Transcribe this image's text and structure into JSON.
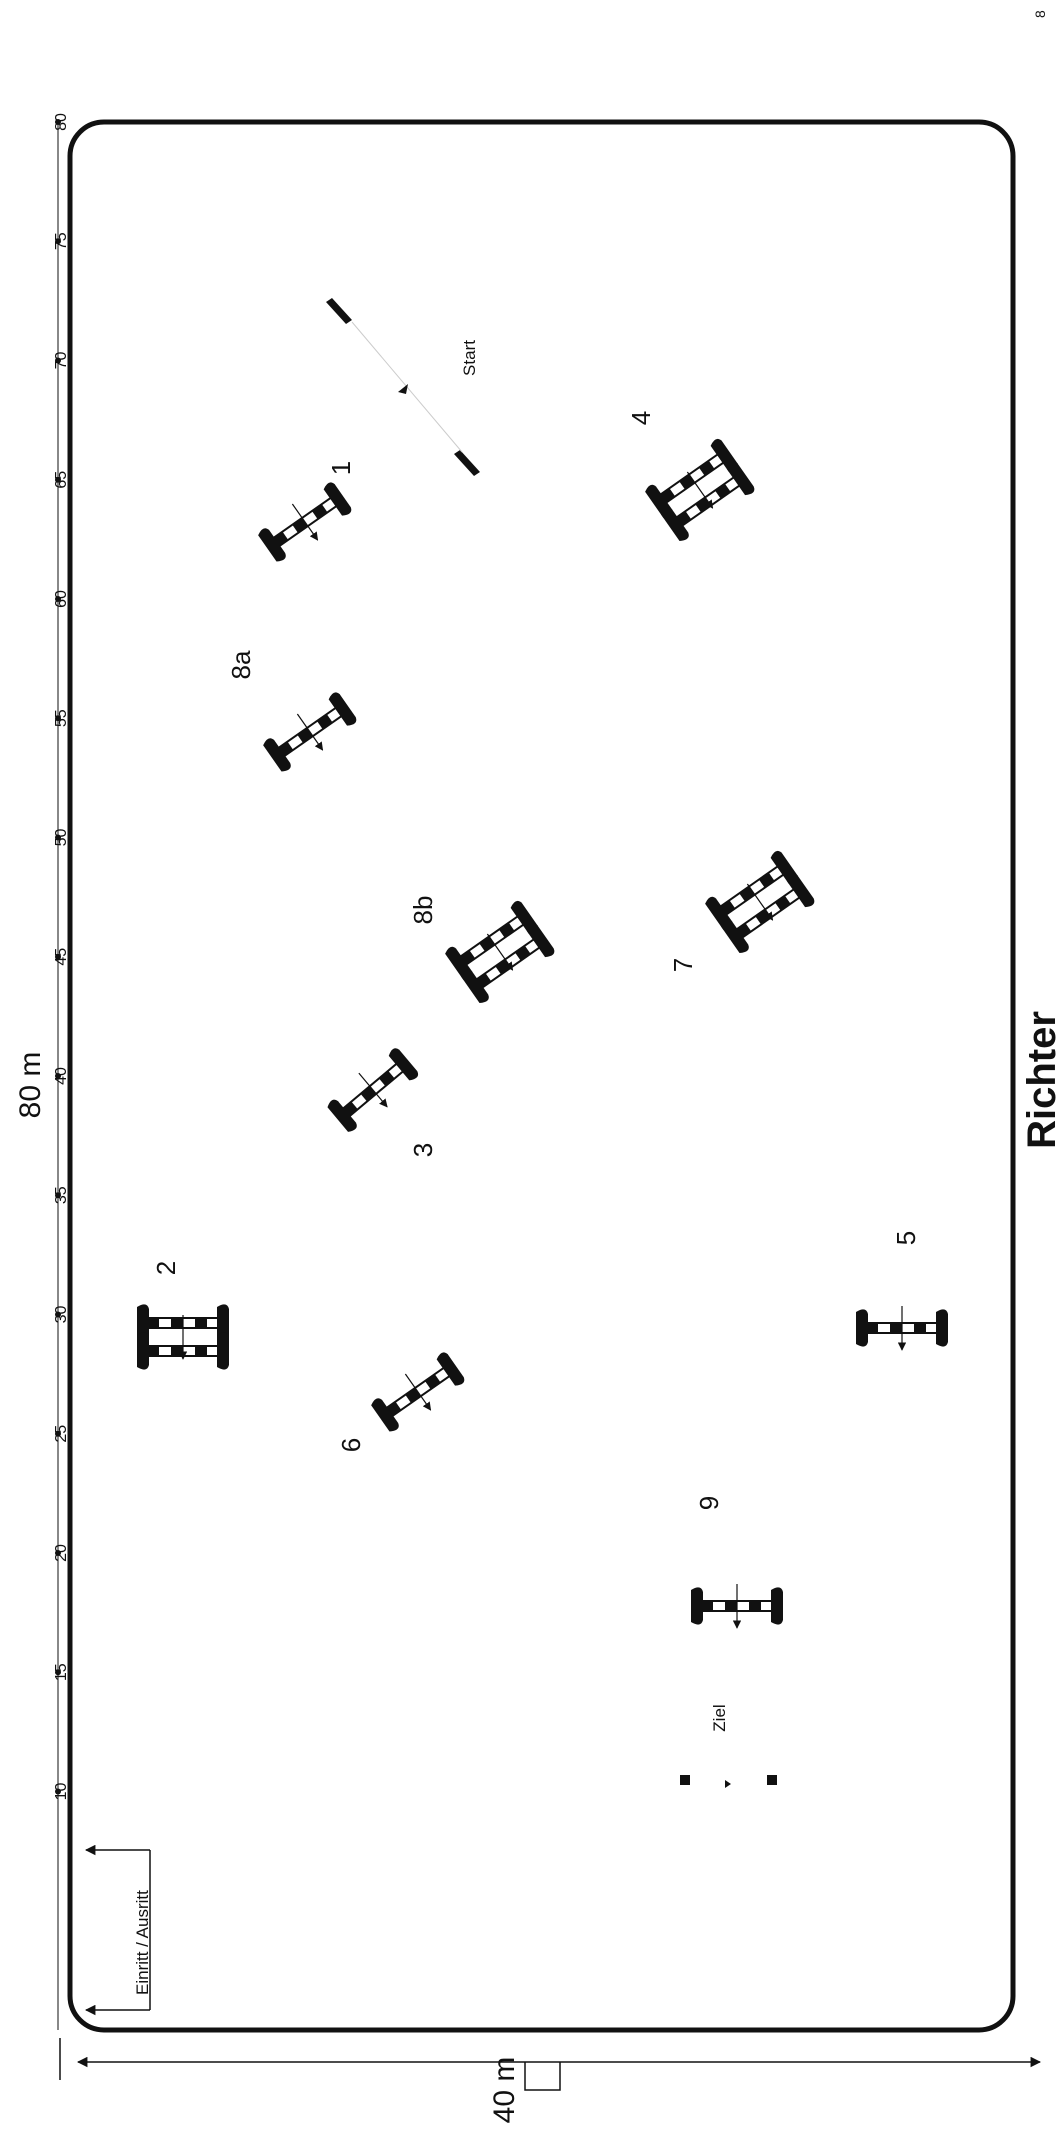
{
  "dimensions": {
    "length_label": "80 m",
    "width_label": "40 m"
  },
  "scale_ticks": [
    "10",
    "15",
    "20",
    "25",
    "30",
    "35",
    "40",
    "45",
    "50",
    "55",
    "60",
    "65",
    "70",
    "75",
    "80"
  ],
  "judge_label": "Richter",
  "entrance_label": "Einritt / Ausritt",
  "start_label": "Start",
  "finish_label": "Ziel",
  "corner_mark": "8",
  "obstacles": [
    {
      "label": "1"
    },
    {
      "label": "2"
    },
    {
      "label": "3"
    },
    {
      "label": "4"
    },
    {
      "label": "5"
    },
    {
      "label": "6"
    },
    {
      "label": "7"
    },
    {
      "label": "8a"
    },
    {
      "label": "8b"
    },
    {
      "label": "9"
    }
  ],
  "colors": {
    "ink": "#111111",
    "paper": "#ffffff"
  }
}
